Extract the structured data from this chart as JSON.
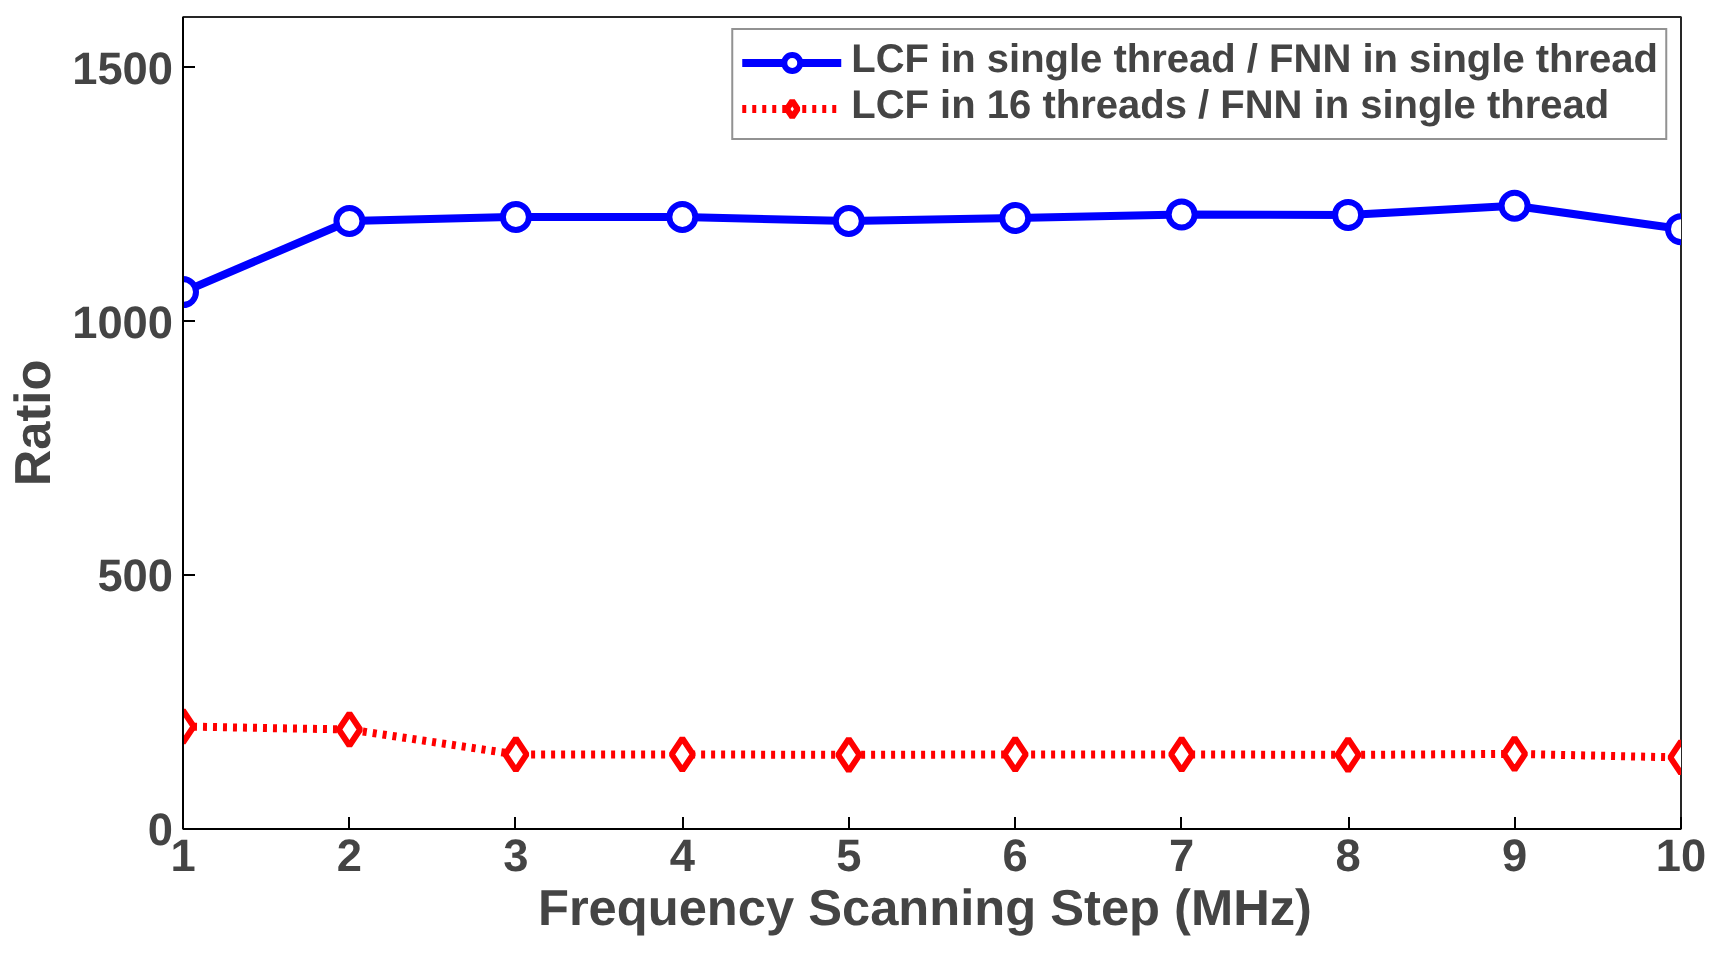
{
  "chart_data": {
    "type": "line",
    "xlabel": "Frequency Scanning  Step (MHz)",
    "ylabel": "Ratio",
    "x": [
      1,
      2,
      3,
      4,
      5,
      6,
      7,
      8,
      9,
      10
    ],
    "xlim": [
      1,
      10
    ],
    "ylim": [
      0,
      1600
    ],
    "xticks": [
      1,
      2,
      3,
      4,
      5,
      6,
      7,
      8,
      9,
      10
    ],
    "yticks": [
      0,
      500,
      1000,
      1500
    ],
    "grid": false,
    "legend": "top right",
    "series": [
      {
        "name": "LCF in single thread / FNN in single thread",
        "color": "#0000ff",
        "marker": "circle",
        "line_style": "solid",
        "values": [
          1058,
          1198,
          1206,
          1206,
          1198,
          1204,
          1211,
          1210,
          1228,
          1182
        ]
      },
      {
        "name": "LCF in 16 threads / FNN in single thread",
        "color": "#ff0000",
        "marker": "diamond",
        "line_style": "dotted",
        "values": [
          202,
          196,
          147,
          147,
          146,
          147,
          147,
          146,
          148,
          141
        ]
      }
    ]
  }
}
